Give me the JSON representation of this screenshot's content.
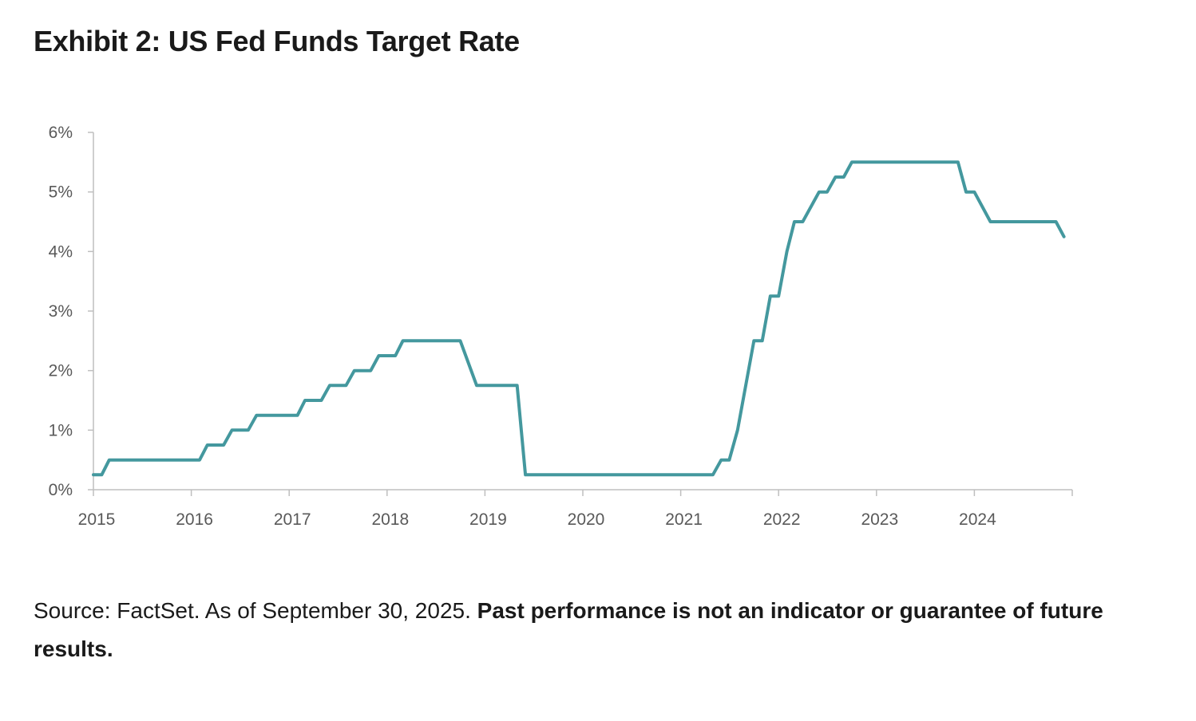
{
  "title": "Exhibit 2: US Fed Funds Target Rate",
  "footnote": {
    "source": "Source: FactSet. As of September 30, 2025.",
    "disclaimer": "Past performance is not an indicator or guarantee of future results."
  },
  "colors": {
    "line": "#44989E",
    "axis": "#BFBFBF",
    "tick_text": "#595959"
  },
  "chart_data": {
    "type": "line",
    "title": "",
    "xlabel": "",
    "ylabel": "",
    "grid": false,
    "legend": "none",
    "xlim": [
      "2015-01-01",
      "2025-01-01"
    ],
    "ylim": [
      0,
      6
    ],
    "x_ticks": [
      "2015",
      "2016",
      "2017",
      "2018",
      "2019",
      "2020",
      "2021",
      "2022",
      "2023",
      "2024"
    ],
    "y_ticks": [
      "0%",
      "1%",
      "2%",
      "3%",
      "4%",
      "5%",
      "6%"
    ],
    "y_tick_values": [
      0,
      1,
      2,
      3,
      4,
      5,
      6
    ],
    "series": [
      {
        "values_unit": "%",
        "points": [
          [
            "2015-01-01",
            0.25
          ],
          [
            "2015-02-01",
            0.25
          ],
          [
            "2015-03-01",
            0.5
          ],
          [
            "2016-02-01",
            0.5
          ],
          [
            "2016-03-01",
            0.75
          ],
          [
            "2016-05-01",
            0.75
          ],
          [
            "2016-06-01",
            1.0
          ],
          [
            "2016-08-01",
            1.0
          ],
          [
            "2016-09-01",
            1.25
          ],
          [
            "2017-02-01",
            1.25
          ],
          [
            "2017-03-01",
            1.5
          ],
          [
            "2017-05-01",
            1.5
          ],
          [
            "2017-06-01",
            1.75
          ],
          [
            "2017-08-01",
            1.75
          ],
          [
            "2017-09-01",
            2.0
          ],
          [
            "2017-11-01",
            2.0
          ],
          [
            "2017-12-01",
            2.25
          ],
          [
            "2018-02-01",
            2.25
          ],
          [
            "2018-03-01",
            2.5
          ],
          [
            "2018-10-01",
            2.5
          ],
          [
            "2018-12-01",
            1.75
          ],
          [
            "2019-05-01",
            1.75
          ],
          [
            "2019-06-01",
            0.25
          ],
          [
            "2021-05-01",
            0.25
          ],
          [
            "2021-06-01",
            0.5
          ],
          [
            "2021-07-01",
            0.5
          ],
          [
            "2021-08-01",
            1.0
          ],
          [
            "2021-10-01",
            2.5
          ],
          [
            "2021-11-01",
            2.5
          ],
          [
            "2021-12-01",
            3.25
          ],
          [
            "2022-01-01",
            3.25
          ],
          [
            "2022-02-01",
            4.0
          ],
          [
            "2022-03-01",
            4.5
          ],
          [
            "2022-04-01",
            4.5
          ],
          [
            "2022-06-01",
            5.0
          ],
          [
            "2022-07-01",
            5.0
          ],
          [
            "2022-08-01",
            5.25
          ],
          [
            "2022-09-01",
            5.25
          ],
          [
            "2022-10-01",
            5.5
          ],
          [
            "2023-11-01",
            5.5
          ],
          [
            "2023-12-01",
            5.0
          ],
          [
            "2024-01-01",
            5.0
          ],
          [
            "2024-03-01",
            4.5
          ],
          [
            "2024-11-01",
            4.5
          ],
          [
            "2024-12-01",
            4.25
          ]
        ]
      }
    ]
  }
}
